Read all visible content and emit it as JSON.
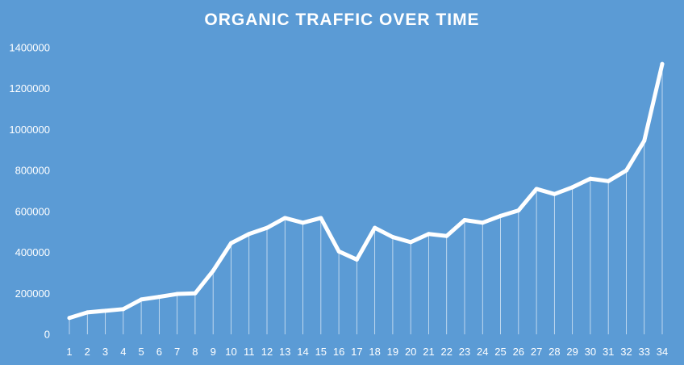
{
  "chart_data": {
    "type": "line",
    "title": "ORGANIC TRAFFIC OVER TIME",
    "xlabel": "",
    "ylabel": "",
    "ylim": [
      0,
      1400000
    ],
    "yticks": [
      "0",
      "200000",
      "400000",
      "600000",
      "800000",
      "1000000",
      "1200000",
      "1400000"
    ],
    "x": [
      "1",
      "2",
      "3",
      "4",
      "5",
      "6",
      "7",
      "8",
      "9",
      "10",
      "11",
      "12",
      "13",
      "14",
      "15",
      "16",
      "17",
      "18",
      "19",
      "20",
      "21",
      "22",
      "23",
      "24",
      "25",
      "26",
      "27",
      "28",
      "29",
      "30",
      "31",
      "32",
      "33",
      "34"
    ],
    "series": [
      {
        "name": "",
        "values": [
          80000,
          107000,
          115000,
          123000,
          170000,
          183000,
          197000,
          200000,
          310000,
          445000,
          490000,
          520000,
          568000,
          545000,
          568000,
          405000,
          365000,
          520000,
          475000,
          450000,
          490000,
          480000,
          558000,
          545000,
          578000,
          605000,
          710000,
          685000,
          718000,
          760000,
          748000,
          800000,
          945000,
          1320000
        ]
      }
    ],
    "grid": false,
    "drop_lines": true,
    "legend": "none",
    "colors": {
      "background": "#5b9bd5",
      "line": "#ffffff",
      "text": "#ffffff",
      "drop_line": "#ffffff"
    }
  }
}
